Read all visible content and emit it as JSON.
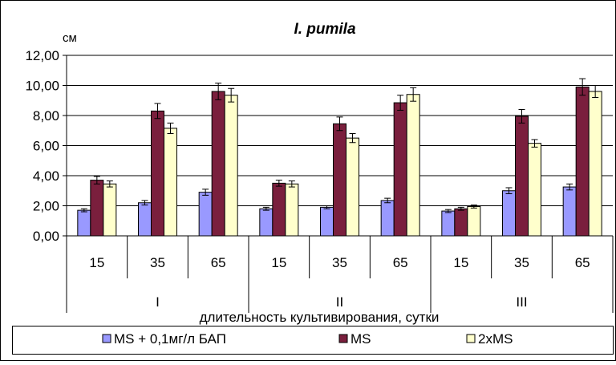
{
  "chart_data": {
    "type": "bar",
    "title": "I. pumila",
    "ylabel": "см",
    "xlabel": "длительность культивирования, сутки",
    "ylim": [
      0,
      12
    ],
    "yticks": [
      "0,00",
      "2,00",
      "4,00",
      "6,00",
      "8,00",
      "10,00",
      "12,00"
    ],
    "grid": true,
    "legend_position": "bottom",
    "groups": [
      {
        "label": "I",
        "categories": [
          "15",
          "35",
          "65"
        ]
      },
      {
        "label": "II",
        "categories": [
          "15",
          "35",
          "65"
        ]
      },
      {
        "label": "III",
        "categories": [
          "15",
          "35",
          "65"
        ]
      }
    ],
    "series": [
      {
        "name": "MS + 0,1мг/л БАП",
        "color": "#9999ff",
        "values": [
          1.7,
          2.2,
          2.9,
          1.8,
          1.9,
          2.35,
          1.65,
          3.0,
          3.25
        ],
        "errors": [
          0.1,
          0.15,
          0.2,
          0.1,
          0.1,
          0.15,
          0.1,
          0.2,
          0.2
        ]
      },
      {
        "name": "MS",
        "color": "#7a1f3d",
        "values": [
          3.7,
          8.3,
          9.6,
          3.5,
          7.45,
          8.85,
          1.8,
          7.95,
          9.9
        ],
        "errors": [
          0.25,
          0.5,
          0.55,
          0.2,
          0.45,
          0.5,
          0.1,
          0.45,
          0.55
        ]
      },
      {
        "name": "2xMS",
        "color": "#ffffcc",
        "values": [
          3.45,
          7.15,
          9.35,
          3.45,
          6.5,
          9.4,
          1.95,
          6.15,
          9.6
        ],
        "errors": [
          0.2,
          0.35,
          0.45,
          0.2,
          0.3,
          0.45,
          0.1,
          0.25,
          0.4
        ]
      }
    ]
  }
}
